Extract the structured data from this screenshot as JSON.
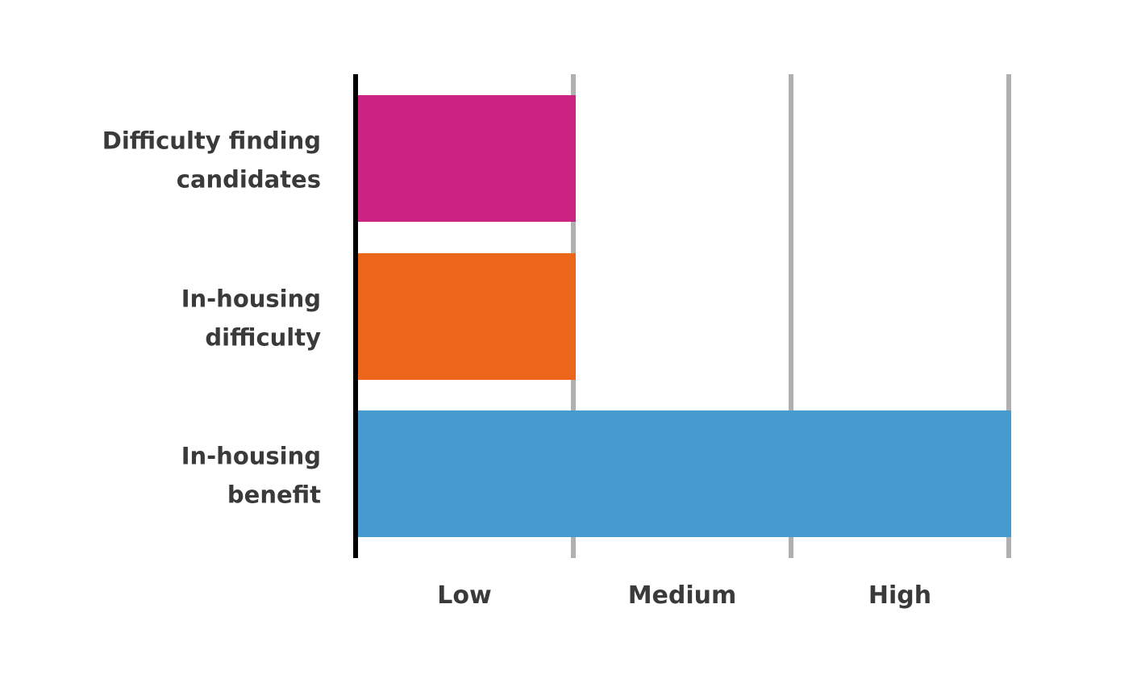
{
  "chart_data": {
    "type": "bar",
    "orientation": "horizontal",
    "categories": [
      [
        "Difficulty finding",
        "candidates"
      ],
      [
        "In-housing",
        "difficulty"
      ],
      [
        "In-housing",
        "benefit"
      ]
    ],
    "values": [
      1,
      1,
      3
    ],
    "colors": [
      "#cc2281",
      "#eb661b",
      "#459ad0"
    ],
    "x_tick_labels": [
      "Low",
      "Medium",
      "High"
    ],
    "xlim": [
      0,
      3
    ],
    "grid": true,
    "title": "",
    "xlabel": "",
    "ylabel": ""
  }
}
